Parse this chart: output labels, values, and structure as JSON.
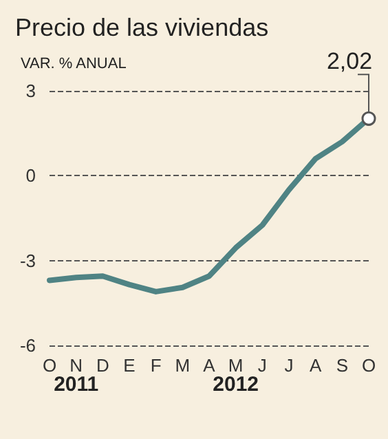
{
  "chart_data": {
    "type": "line",
    "title": "Precio de las viviendas",
    "subtitle": "VAR. % ANUAL",
    "categories": [
      "O",
      "N",
      "D",
      "E",
      "F",
      "M",
      "A",
      "M",
      "J",
      "J",
      "A",
      "S",
      "O"
    ],
    "annotations": [
      "2011",
      "2012"
    ],
    "series": [
      {
        "color": "#4f8384",
        "values": [
          -3.7,
          -3.6,
          -3.55,
          -3.85,
          -4.1,
          -3.95,
          -3.55,
          -2.55,
          -1.75,
          -0.5,
          0.6,
          1.2,
          2.02
        ],
        "value_labels": [
          null,
          null,
          null,
          null,
          null,
          null,
          null,
          null,
          null,
          null,
          null,
          null,
          "2,02"
        ]
      }
    ],
    "ylim": [
      -6,
      3
    ],
    "yticks": [
      -6,
      -3,
      0,
      3
    ],
    "grid": "y",
    "marker": "none",
    "line_style": "solid"
  }
}
